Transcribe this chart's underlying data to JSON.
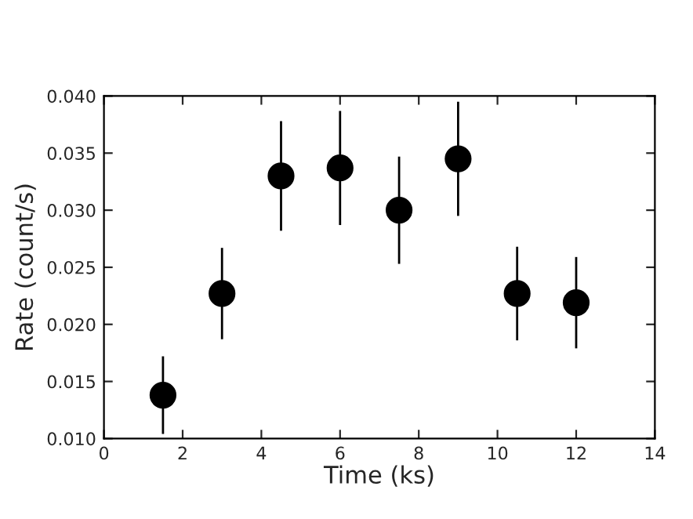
{
  "chart_data": {
    "type": "scatter",
    "xlabel": "Time (ks)",
    "ylabel": "Rate (count/s)",
    "x": [
      1.5,
      3,
      4.5,
      6,
      7.5,
      9,
      10.5,
      12
    ],
    "values": [
      0.0138,
      0.0227,
      0.033,
      0.0337,
      0.03,
      0.0345,
      0.0227,
      0.0219
    ],
    "errors": [
      0.0034,
      0.004,
      0.0048,
      0.005,
      0.0047,
      0.005,
      0.0041,
      0.004
    ],
    "color": "#000000",
    "marker": "circle",
    "xlim": [
      0,
      14
    ],
    "xticks": [
      0,
      2,
      4,
      6,
      8,
      10,
      12,
      14
    ],
    "ylim": [
      0.01,
      0.04
    ],
    "yticks": [
      {
        "value": 0.01,
        "label": "0.010"
      },
      {
        "value": 0.015,
        "label": "0.015"
      },
      {
        "value": 0.02,
        "label": "0.020"
      },
      {
        "value": 0.025,
        "label": "0.025"
      },
      {
        "value": 0.03,
        "label": "0.030"
      },
      {
        "value": 0.035,
        "label": "0.035"
      },
      {
        "value": 0.04,
        "label": "0.040"
      }
    ],
    "grid": false
  }
}
